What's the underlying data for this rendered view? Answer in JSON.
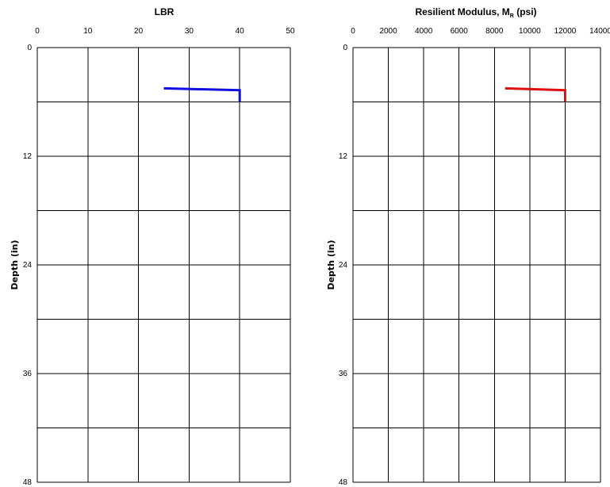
{
  "chart_data": [
    {
      "type": "line",
      "title": "LBR",
      "title_sub": "",
      "title_tail": "",
      "xlabel": "",
      "ylabel": "Depth (in)",
      "xlim": [
        0,
        50
      ],
      "ylim": [
        0,
        48
      ],
      "y_inverted": true,
      "x_ticks": [
        "0",
        "10",
        "20",
        "30",
        "40",
        "50"
      ],
      "y_ticks": [
        "0",
        "12",
        "24",
        "36",
        "48"
      ],
      "x_gridlines": [
        0,
        10,
        20,
        30,
        40,
        50
      ],
      "y_gridlines": [
        0,
        6,
        12,
        18,
        24,
        30,
        36,
        42,
        48
      ],
      "grid": true,
      "series": [
        {
          "color": "#1010e0",
          "points": [
            {
              "x": 25,
              "y": 4.5
            },
            {
              "x": 40,
              "y": 4.7
            },
            {
              "x": 40,
              "y": 6
            }
          ]
        }
      ]
    },
    {
      "type": "line",
      "title": "Resilient Modulus, M",
      "title_sub": "R",
      "title_tail": " (psi)",
      "xlabel": "",
      "ylabel": "Depth (in)",
      "xlim": [
        0,
        14000
      ],
      "ylim": [
        0,
        48
      ],
      "y_inverted": true,
      "x_ticks": [
        "0",
        "2000",
        "4000",
        "6000",
        "8000",
        "10000",
        "12000",
        "14000"
      ],
      "y_ticks": [
        "0",
        "12",
        "24",
        "36",
        "48"
      ],
      "x_gridlines": [
        0,
        2000,
        4000,
        6000,
        8000,
        10000,
        12000,
        14000
      ],
      "y_gridlines": [
        0,
        6,
        12,
        18,
        24,
        30,
        36,
        42,
        48
      ],
      "grid": true,
      "series": [
        {
          "color": "#e01010",
          "points": [
            {
              "x": 8600,
              "y": 4.5
            },
            {
              "x": 12000,
              "y": 4.7
            },
            {
              "x": 12000,
              "y": 6
            }
          ]
        }
      ]
    }
  ]
}
